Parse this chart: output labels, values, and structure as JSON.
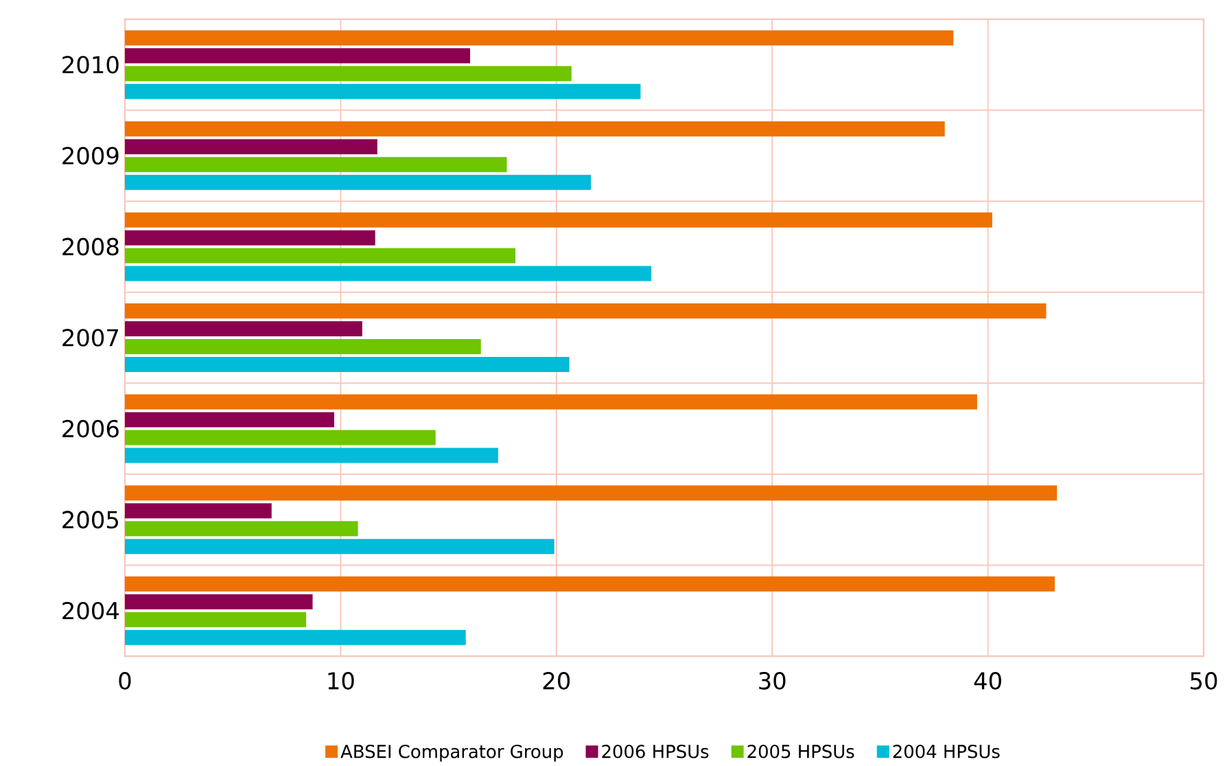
{
  "chart_data": {
    "type": "bar",
    "orientation": "horizontal",
    "categories": [
      "2010",
      "2009",
      "2008",
      "2007",
      "2006",
      "2005",
      "2004"
    ],
    "series": [
      {
        "name": "ABSEI Comparator Group",
        "color": "#ee7203",
        "values": [
          38.4,
          38.0,
          40.2,
          42.7,
          39.5,
          43.2,
          43.1
        ]
      },
      {
        "name": "2006 HPSUs",
        "color": "#8c0050",
        "values": [
          16.0,
          11.7,
          11.6,
          11.0,
          9.7,
          6.8,
          8.7
        ]
      },
      {
        "name": "2005 HPSUs",
        "color": "#6fc500",
        "values": [
          20.7,
          17.7,
          18.1,
          16.5,
          14.4,
          10.8,
          8.4
        ]
      },
      {
        "name": "2004 HPSUs",
        "color": "#00bcd8",
        "values": [
          23.9,
          21.6,
          24.4,
          20.6,
          17.3,
          19.9,
          15.8
        ]
      }
    ],
    "xlim": [
      0,
      50
    ],
    "xticks": [
      0,
      10,
      20,
      30,
      40,
      50
    ],
    "grid": true,
    "legend": "bottom"
  }
}
